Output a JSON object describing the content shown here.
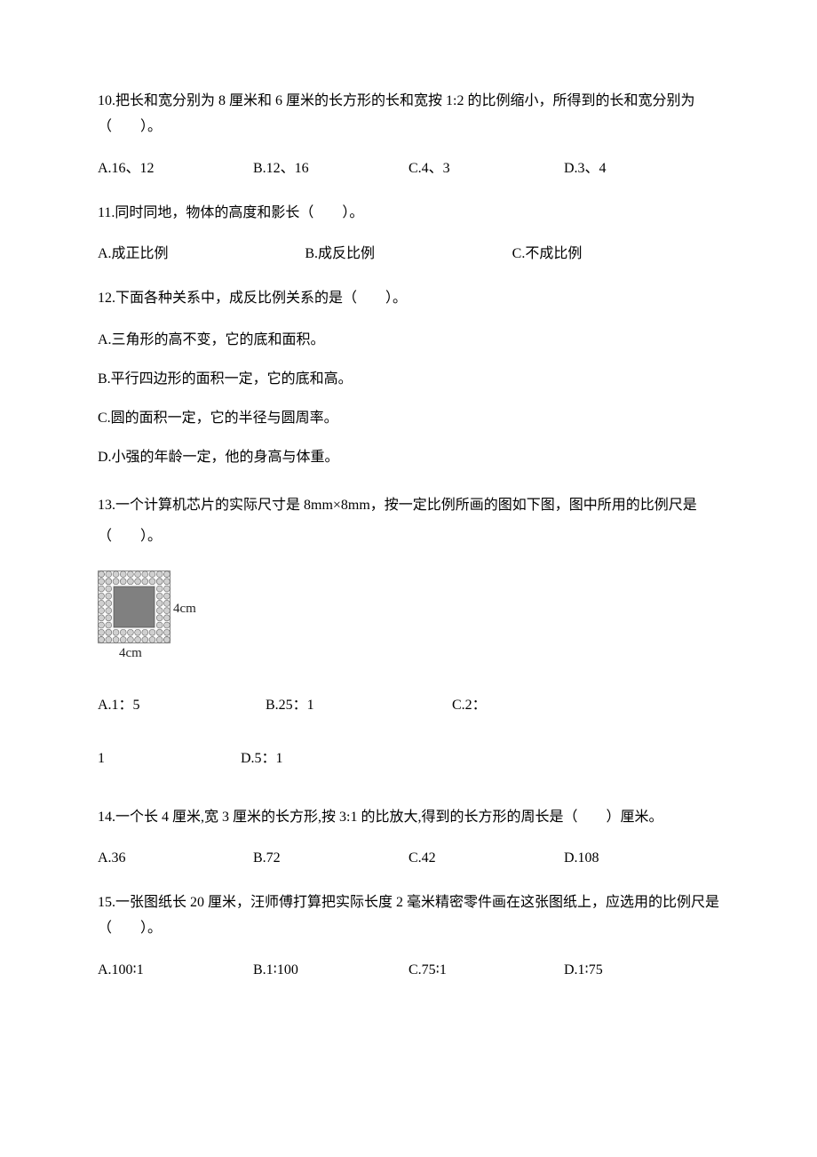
{
  "q10": {
    "text": "10.把长和宽分别为 8 厘米和 6 厘米的长方形的长和宽按 1:2 的比例缩小，所得到的长和宽分别为（　　）。",
    "options": {
      "a": "A.16、12",
      "b": "B.12、16",
      "c": "C.4、3",
      "d": "D.3、4"
    }
  },
  "q11": {
    "text": "11.同时同地，物体的高度和影长（　　）。",
    "options": {
      "a": "A.成正比例",
      "b": "B.成反比例",
      "c": "C.不成比例"
    }
  },
  "q12": {
    "text": "12.下面各种关系中，成反比例关系的是（　　）。",
    "options": {
      "a": "A.三角形的高不变，它的底和面积。",
      "b": "B.平行四边形的面积一定，它的底和高。",
      "c": "C.圆的面积一定，它的半径与圆周率。",
      "d": "D.小强的年龄一定，他的身高与体重。"
    }
  },
  "q13": {
    "text": "13.一个计算机芯片的实际尺寸是 8mm×8mm，按一定比例所画的图如下图，图中所用的比例尺是（　　）。",
    "label_right": "4cm",
    "label_bottom": "4cm",
    "options": {
      "a": "A.1：5",
      "b": "B.25：1",
      "c": "C.2：",
      "c2": "1",
      "d": "D.5：1"
    },
    "chip": {
      "outer_size": 82,
      "pin_count": 10,
      "bg": "#fafafa",
      "border": "#888888",
      "pin_fill": "#d0d0d0",
      "pin_stroke": "#666666",
      "die_fill": "#808080"
    }
  },
  "q14": {
    "text": "14.一个长 4 厘米,宽 3 厘米的长方形,按 3:1 的比放大,得到的长方形的周长是（　　）厘米。",
    "options": {
      "a": "A.36",
      "b": "B.72",
      "c": "C.42",
      "d": "D.108"
    }
  },
  "q15": {
    "text": "15.一张图纸长 20 厘米，汪师傅打算把实际长度 2 毫米精密零件画在这张图纸上，应选用的比例尺是（　　）。",
    "options": {
      "a": "A.100∶1",
      "b": "B.1∶100",
      "c": "C.75∶1",
      "d": "D.1∶75"
    }
  }
}
